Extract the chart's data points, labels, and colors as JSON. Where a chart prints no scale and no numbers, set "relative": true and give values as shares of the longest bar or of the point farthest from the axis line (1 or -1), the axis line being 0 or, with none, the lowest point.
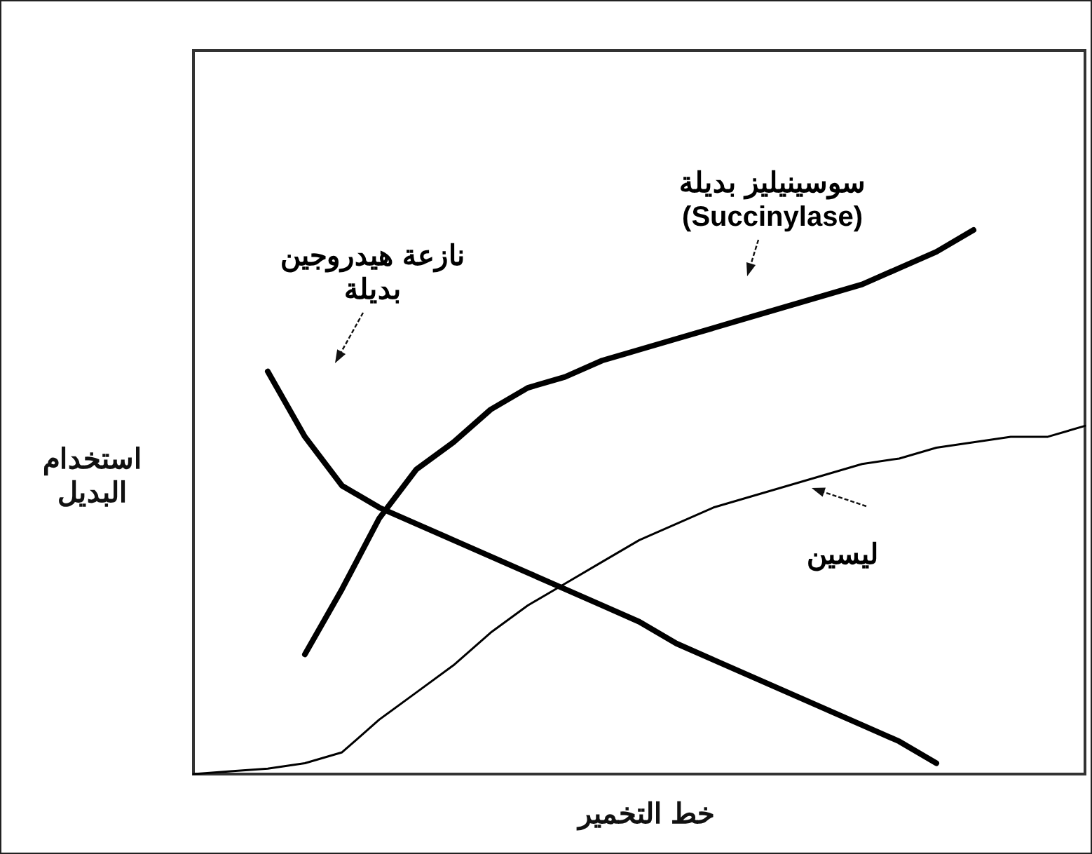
{
  "chart_data": {
    "type": "line",
    "relative": true,
    "xlabel": "خط التخمير",
    "ylabel": "استخدام البديل",
    "categories": [
      null,
      null,
      null,
      null,
      null,
      null,
      null,
      null,
      null,
      null,
      null,
      null,
      null,
      null,
      null,
      null,
      null,
      null,
      null,
      null,
      null,
      null,
      null,
      null,
      null
    ],
    "series": [
      {
        "name": "نازعة هيدروجين بديلة",
        "color": "#000000",
        "values": [
          null,
          null,
          0.74,
          0.62,
          0.53,
          0.49,
          0.46,
          0.43,
          0.4,
          0.37,
          0.34,
          0.31,
          0.28,
          0.24,
          0.21,
          0.18,
          0.15,
          0.12,
          0.09,
          0.06,
          0.02,
          null,
          null,
          null,
          null
        ]
      },
      {
        "name": "سوسينيليز بديلة (Succinylase)",
        "color": "#000000",
        "values": [
          null,
          null,
          null,
          0.22,
          0.34,
          0.47,
          0.56,
          0.61,
          0.67,
          0.71,
          0.73,
          0.76,
          0.78,
          0.8,
          0.82,
          0.84,
          0.86,
          0.88,
          0.9,
          0.93,
          0.96,
          1,
          null,
          null,
          null
        ]
      },
      {
        "name": "ليسين",
        "color": "#000000",
        "values": [
          0,
          0.005,
          0.01,
          0.02,
          0.04,
          0.1,
          0.15,
          0.2,
          0.26,
          0.31,
          0.35,
          0.39,
          0.43,
          0.46,
          0.49,
          0.51,
          0.53,
          0.55,
          0.57,
          0.58,
          0.6,
          0.61,
          0.62,
          0.62,
          0.64
        ]
      }
    ],
    "grid": false,
    "legend": false,
    "marker": "none",
    "line_style": "solid"
  }
}
